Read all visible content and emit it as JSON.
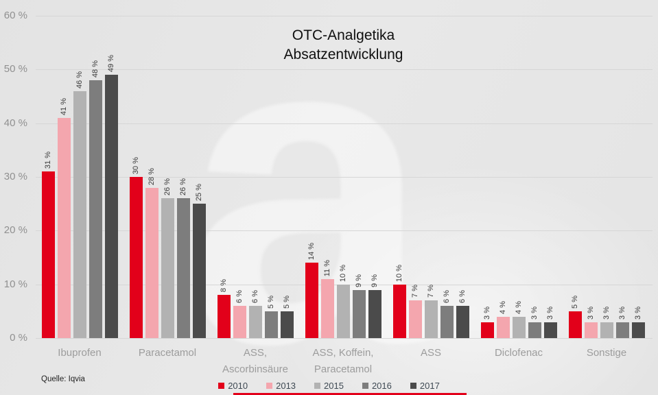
{
  "title": {
    "line1": "OTC-Analgetika",
    "line2": "Absatzentwicklung"
  },
  "source_label": "Quelle: Iqvia",
  "watermark_glyph": "a",
  "colors": {
    "accent_red": "#e2001a",
    "pink": "#f4a6ae",
    "light_gray": "#b2b2b2",
    "medium_gray": "#7d7d7d",
    "dark_gray": "#4b4b4b",
    "gridline": "#d6d6d6",
    "axis_text": "#909090",
    "category_text": "#9c9c9c",
    "value_text": "#3a3a3a",
    "legend_text": "#3e4953"
  },
  "y_axis": {
    "tick_values": [
      0,
      10,
      20,
      30,
      40,
      50,
      60
    ],
    "tick_labels": [
      "0 %",
      "10 %",
      "20 %",
      "30 %",
      "40 %",
      "50 %",
      "60 %"
    ]
  },
  "chart_data": {
    "type": "bar",
    "title": "OTC-Analgetika Absatzentwicklung",
    "xlabel": "",
    "ylabel": "",
    "ylim": [
      0,
      60
    ],
    "ytick_step": 10,
    "grid": true,
    "legend_position": "bottom",
    "value_suffix": " %",
    "categories": [
      "Ibuprofen",
      "Paracetamol",
      "ASS, Ascorbinsäure",
      "ASS, Koffein, Paracetamol",
      "ASS",
      "Diclofenac",
      "Sonstige"
    ],
    "category_label_lines": [
      [
        "Ibuprofen"
      ],
      [
        "Paracetamol"
      ],
      [
        "ASS,",
        "Ascorbinsäure"
      ],
      [
        "ASS, Koffein,",
        "Paracetamol"
      ],
      [
        "ASS"
      ],
      [
        "Diclofenac"
      ],
      [
        "Sonstige"
      ]
    ],
    "series": [
      {
        "name": "2010",
        "color": "#e2001a",
        "values": [
          31,
          30,
          8,
          14,
          10,
          3,
          5
        ]
      },
      {
        "name": "2013",
        "color": "#f4a6ae",
        "values": [
          41,
          28,
          6,
          11,
          7,
          4,
          3
        ]
      },
      {
        "name": "2015",
        "color": "#b2b2b2",
        "values": [
          46,
          26,
          6,
          10,
          7,
          4,
          3
        ]
      },
      {
        "name": "2016",
        "color": "#7d7d7d",
        "values": [
          48,
          26,
          5,
          9,
          6,
          3,
          3
        ]
      },
      {
        "name": "2017",
        "color": "#4b4b4b",
        "values": [
          49,
          25,
          5,
          9,
          6,
          3,
          3
        ]
      }
    ]
  }
}
